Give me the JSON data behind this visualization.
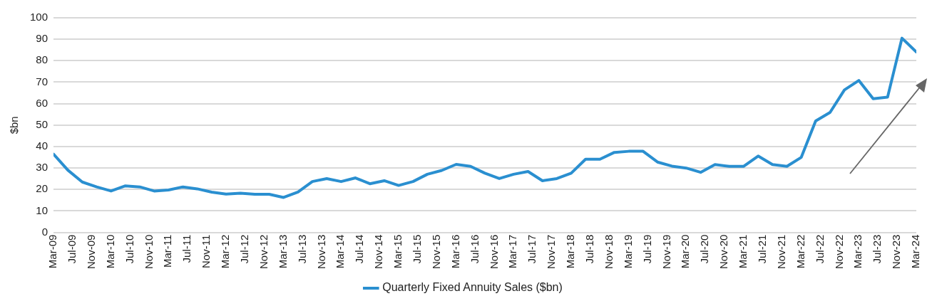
{
  "chart_data": {
    "type": "line",
    "ylabel": "$bn",
    "x": [
      "2009-03",
      "2009-06",
      "2009-09",
      "2009-12",
      "2010-03",
      "2010-06",
      "2010-09",
      "2010-12",
      "2011-03",
      "2011-06",
      "2011-09",
      "2011-12",
      "2012-03",
      "2012-06",
      "2012-09",
      "2012-12",
      "2013-03",
      "2013-06",
      "2013-09",
      "2013-12",
      "2014-03",
      "2014-06",
      "2014-09",
      "2014-12",
      "2015-03",
      "2015-06",
      "2015-09",
      "2015-12",
      "2016-03",
      "2016-06",
      "2016-09",
      "2016-12",
      "2017-03",
      "2017-06",
      "2017-09",
      "2017-12",
      "2018-03",
      "2018-06",
      "2018-09",
      "2018-12",
      "2019-03",
      "2019-06",
      "2019-09",
      "2019-12",
      "2020-03",
      "2020-06",
      "2020-09",
      "2020-12",
      "2021-03",
      "2021-06",
      "2021-09",
      "2021-12",
      "2022-03",
      "2022-06",
      "2022-09",
      "2022-12",
      "2023-03",
      "2023-06",
      "2023-09",
      "2023-12",
      "2024-03"
    ],
    "series": [
      {
        "name": "Quarterly Fixed Annuity Sales ($bn)",
        "color": "#2a8fd0",
        "values": [
          36.5,
          29,
          23.5,
          21.2,
          19.3,
          21.7,
          21.2,
          19.3,
          19.8,
          21.2,
          20.3,
          18.8,
          17.9,
          18.3,
          17.8,
          17.8,
          16.3,
          18.8,
          23.7,
          25.1,
          23.7,
          25.4,
          22.7,
          24.1,
          21.9,
          23.7,
          27.1,
          28.9,
          31.7,
          30.8,
          27.6,
          25.1,
          27.1,
          28.4,
          24.1,
          25.1,
          27.6,
          34.1,
          34.1,
          37.3,
          37.8,
          37.8,
          32.8,
          30.9,
          30,
          28,
          31.6,
          30.8,
          30.8,
          35.6,
          31.6,
          30.8,
          35,
          51.9,
          55.9,
          66.4,
          70.8,
          62.3,
          63,
          90.5,
          84.1
        ]
      }
    ],
    "xlim": [
      "2009-03",
      "2024-03"
    ],
    "xticks": [
      {
        "value": "2009-03",
        "label": "Mar-09"
      },
      {
        "value": "2009-07",
        "label": "Jul-09"
      },
      {
        "value": "2009-11",
        "label": "Nov-09"
      },
      {
        "value": "2010-03",
        "label": "Mar-10"
      },
      {
        "value": "2010-07",
        "label": "Jul-10"
      },
      {
        "value": "2010-11",
        "label": "Nov-10"
      },
      {
        "value": "2011-03",
        "label": "Mar-11"
      },
      {
        "value": "2011-07",
        "label": "Jul-11"
      },
      {
        "value": "2011-11",
        "label": "Nov-11"
      },
      {
        "value": "2012-03",
        "label": "Mar-12"
      },
      {
        "value": "2012-07",
        "label": "Jul-12"
      },
      {
        "value": "2012-11",
        "label": "Nov-12"
      },
      {
        "value": "2013-03",
        "label": "Mar-13"
      },
      {
        "value": "2013-07",
        "label": "Jul-13"
      },
      {
        "value": "2013-11",
        "label": "Nov-13"
      },
      {
        "value": "2014-03",
        "label": "Mar-14"
      },
      {
        "value": "2014-07",
        "label": "Jul-14"
      },
      {
        "value": "2014-11",
        "label": "Nov-14"
      },
      {
        "value": "2015-03",
        "label": "Mar-15"
      },
      {
        "value": "2015-07",
        "label": "Jul-15"
      },
      {
        "value": "2015-11",
        "label": "Nov-15"
      },
      {
        "value": "2016-03",
        "label": "Mar-16"
      },
      {
        "value": "2016-07",
        "label": "Jul-16"
      },
      {
        "value": "2016-11",
        "label": "Nov-16"
      },
      {
        "value": "2017-03",
        "label": "Mar-17"
      },
      {
        "value": "2017-07",
        "label": "Jul-17"
      },
      {
        "value": "2017-11",
        "label": "Nov-17"
      },
      {
        "value": "2018-03",
        "label": "Mar-18"
      },
      {
        "value": "2018-07",
        "label": "Jul-18"
      },
      {
        "value": "2018-11",
        "label": "Nov-18"
      },
      {
        "value": "2019-03",
        "label": "Mar-19"
      },
      {
        "value": "2019-07",
        "label": "Jul-19"
      },
      {
        "value": "2019-11",
        "label": "Nov-19"
      },
      {
        "value": "2020-03",
        "label": "Mar-20"
      },
      {
        "value": "2020-07",
        "label": "Jul-20"
      },
      {
        "value": "2020-11",
        "label": "Nov-20"
      },
      {
        "value": "2021-03",
        "label": "Mar-21"
      },
      {
        "value": "2021-07",
        "label": "Jul-21"
      },
      {
        "value": "2021-11",
        "label": "Nov-21"
      },
      {
        "value": "2022-03",
        "label": "Mar-22"
      },
      {
        "value": "2022-07",
        "label": "Jul-22"
      },
      {
        "value": "2022-11",
        "label": "Nov-22"
      },
      {
        "value": "2023-03",
        "label": "Mar-23"
      },
      {
        "value": "2023-07",
        "label": "Jul-23"
      },
      {
        "value": "2023-11",
        "label": "Nov-23"
      },
      {
        "value": "2024-03",
        "label": "Mar-24"
      }
    ],
    "ylim": [
      0,
      100
    ],
    "yticks": [
      0,
      10,
      20,
      30,
      40,
      50,
      60,
      70,
      80,
      90,
      100
    ],
    "grid": "y",
    "legend": "bottom",
    "marker": "none",
    "line_style": "solid"
  }
}
